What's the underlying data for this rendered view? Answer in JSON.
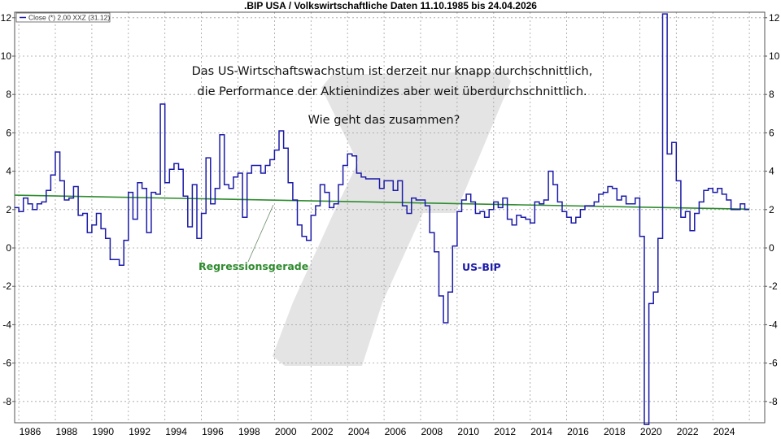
{
  "chart_data": {
    "type": "line",
    "title": ".BIP USA / Volkswirtschaftliche Daten 11.10.1985 bis 24.04.2026",
    "legend": {
      "text": "Close (*) 2,00 XXZ (31.12)",
      "placement": "top-left"
    },
    "xlabel": "",
    "ylabel": "",
    "xlim": [
      1985.75,
      2026.3
    ],
    "ylim": [
      -9.1,
      12.3
    ],
    "grid": true,
    "x_ticks": [
      "1986",
      "1988",
      "1990",
      "1992",
      "1994",
      "1996",
      "1998",
      "2000",
      "2002",
      "2004",
      "2006",
      "2008",
      "2010",
      "2012",
      "2014",
      "2016",
      "2018",
      "2020",
      "2022",
      "2024"
    ],
    "y_ticks": [
      "12",
      "10",
      "8",
      "6",
      "4",
      "2",
      "0",
      "-2",
      "-4",
      "-6",
      "-8"
    ],
    "series": [
      {
        "name": "US-BIP",
        "color": "#1a1aa8",
        "step": true,
        "start": 1985.75,
        "interval_years": 0.25,
        "values": [
          2.1,
          1.9,
          2.6,
          2.3,
          2.0,
          2.3,
          2.4,
          3.0,
          3.8,
          5.0,
          3.5,
          2.5,
          2.6,
          3.2,
          1.7,
          1.8,
          0.8,
          1.2,
          1.8,
          1.0,
          0.5,
          -0.6,
          -0.6,
          -0.9,
          0.4,
          2.9,
          1.5,
          3.4,
          3.1,
          0.8,
          2.9,
          2.8,
          7.5,
          3.4,
          4.1,
          4.4,
          4.1,
          2.7,
          1.1,
          3.3,
          0.5,
          1.8,
          4.7,
          2.3,
          3.1,
          5.9,
          3.3,
          3.1,
          3.7,
          3.9,
          1.6,
          3.9,
          4.3,
          4.3,
          3.9,
          4.3,
          4.6,
          5.1,
          6.1,
          5.2,
          3.4,
          2.5,
          1.2,
          0.6,
          0.4,
          1.7,
          2.2,
          3.3,
          2.9,
          2.1,
          2.3,
          3.3,
          4.3,
          4.9,
          4.8,
          3.9,
          3.7,
          3.6,
          3.6,
          3.6,
          3.1,
          3.5,
          3.5,
          3.0,
          3.5,
          2.2,
          1.8,
          2.6,
          2.5,
          2.5,
          2.2,
          0.8,
          -0.2,
          -2.5,
          -3.9,
          -2.3,
          0.1,
          1.9,
          2.5,
          2.8,
          2.4,
          1.8,
          1.9,
          1.6,
          2.0,
          2.4,
          2.1,
          2.6,
          1.5,
          1.2,
          1.7,
          1.6,
          1.5,
          1.3,
          2.4,
          2.3,
          2.5,
          4.0,
          3.3,
          2.4,
          1.9,
          1.6,
          1.3,
          1.6,
          2.0,
          2.2,
          2.2,
          2.4,
          2.8,
          2.9,
          3.2,
          3.1,
          2.5,
          2.7,
          2.3,
          2.3,
          2.6,
          0.6,
          -9.2,
          -2.9,
          -2.3,
          0.5,
          12.2,
          4.9,
          5.5,
          3.5,
          1.6,
          1.9,
          0.9,
          1.8,
          2.4,
          3.0,
          3.1,
          2.9,
          3.1,
          2.8,
          2.5,
          2.0,
          2.0,
          2.3,
          2.0
        ]
      },
      {
        "name": "Regressionsgerade",
        "color": "#2e8b2e",
        "x": [
          1985.75,
          2026.0
        ],
        "values": [
          2.75,
          2.02
        ]
      }
    ],
    "annotations": [
      "Das US-Wirtschaftswachstum ist derzeit nur knapp durchschnittlich,",
      "die Performance der Aktienindizes aber weit überdurchschnittlich.",
      "Wie geht das zusammen?"
    ],
    "series_labels": {
      "bip": "US-BIP",
      "regression": "Regressionsgerade"
    }
  }
}
